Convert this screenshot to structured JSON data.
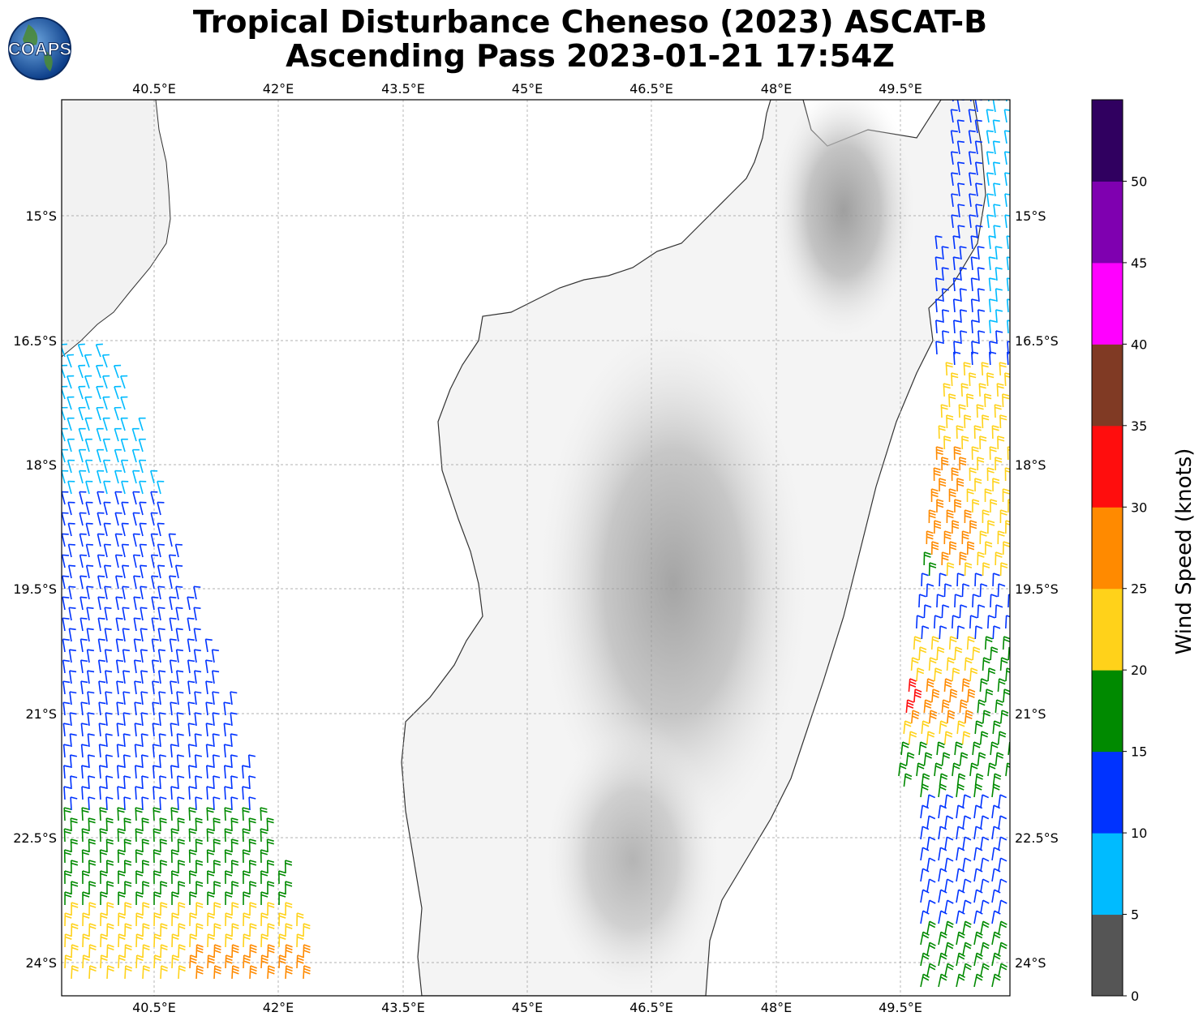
{
  "title": {
    "line1": "Tropical Disturbance Cheneso (2023) ASCAT-B",
    "line2": "Ascending Pass 2023-01-21 17:54Z"
  },
  "logo": {
    "text": "COAPS",
    "icon": "globe-logo-icon"
  },
  "map": {
    "lon_ticks": [
      "40.5°E",
      "42°E",
      "43.5°E",
      "45°E",
      "46.5°E",
      "48°E",
      "49.5°E"
    ],
    "lat_ticks": [
      "15°S",
      "16.5°S",
      "18°S",
      "19.5°S",
      "21°S",
      "22.5°S",
      "24°S"
    ],
    "lon_range": [
      39.4,
      50.8
    ],
    "lat_range": [
      -13.6,
      -24.4
    ],
    "gridlines": true,
    "terrain": "grayscale elevation",
    "wind_barbs": "colored by wind speed"
  },
  "colorbar": {
    "label": "Wind Speed (knots)",
    "ticks": [
      "0",
      "5",
      "10",
      "15",
      "20",
      "25",
      "30",
      "35",
      "40",
      "45",
      "50"
    ],
    "bins": [
      {
        "range": [
          0,
          5
        ],
        "color": "#555555"
      },
      {
        "range": [
          5,
          10
        ],
        "color": "#00bbff"
      },
      {
        "range": [
          10,
          15
        ],
        "color": "#0033ff"
      },
      {
        "range": [
          15,
          20
        ],
        "color": "#008a00"
      },
      {
        "range": [
          20,
          25
        ],
        "color": "#ffd21a"
      },
      {
        "range": [
          25,
          30
        ],
        "color": "#ff8a00"
      },
      {
        "range": [
          30,
          35
        ],
        "color": "#ff0d0d"
      },
      {
        "range": [
          35,
          40
        ],
        "color": "#803a24"
      },
      {
        "range": [
          40,
          45
        ],
        "color": "#ff00ff"
      },
      {
        "range": [
          45,
          50
        ],
        "color": "#7f00b0"
      },
      {
        "range": [
          50,
          55
        ],
        "color": "#300060"
      }
    ]
  }
}
